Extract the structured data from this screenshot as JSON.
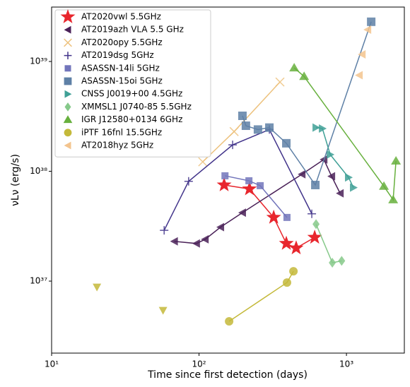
{
  "chart_data": {
    "type": "scatter",
    "log_x": true,
    "log_y": true,
    "xlabel": "Time since first detection (days)",
    "ylabel": "νLν (erg/s)",
    "xlim": [
      10,
      2470
    ],
    "ylim": [
      2.21e+36,
      3.13e+39
    ],
    "xticks": [
      {
        "value": 10,
        "label": "10¹"
      },
      {
        "value": 100,
        "label": "10²"
      },
      {
        "value": 1000,
        "label": "10³"
      }
    ],
    "yticks": [
      {
        "value": 1e+37,
        "label": "10³⁷"
      },
      {
        "value": 1e+38,
        "label": "10³⁸"
      },
      {
        "value": 1e+39,
        "label": "10³⁹"
      }
    ],
    "legend": "upper left",
    "series": [
      {
        "name": "AT2020vwl 5.5GHz",
        "color": "#e8262d",
        "marker": "star",
        "line": true,
        "x": [
          148,
          220,
          321,
          391,
          456,
          609
        ],
        "values": [
          7.5e+37,
          6.9e+37,
          3.8e+37,
          2.2e+37,
          2e+37,
          2.5e+37
        ]
      },
      {
        "name": "AT2019azh VLA 5.5 GHz",
        "color": "#4a2158",
        "marker": "tri-left",
        "line": true,
        "x": [
          68,
          96,
          110,
          140,
          197,
          499,
          703,
          793,
          906
        ],
        "values": [
          2.3e+37,
          2.2e+37,
          2.4e+37,
          3.1e+37,
          4.2e+37,
          9.4e+37,
          1.28e+38,
          9e+37,
          6.3e+37
        ]
      },
      {
        "name": "AT2020opy 5.5GHz",
        "color": "#edc27e",
        "marker": "x",
        "line": true,
        "x": [
          106,
          173,
          354
        ],
        "values": [
          1.22e+38,
          2.3e+38,
          6.5e+38
        ]
      },
      {
        "name": "AT2019dsg 5GHz",
        "color": "#41338a",
        "marker": "plus",
        "line": true,
        "x": [
          58,
          85,
          169,
          300,
          582
        ],
        "values": [
          2.9e+37,
          8.1e+37,
          1.74e+38,
          2.4e+38,
          4.1e+37
        ]
      },
      {
        "name": "ASASSN-14li 5GHz",
        "color": "#7275bb",
        "marker": "square-small",
        "line": true,
        "x": [
          150,
          218,
          260,
          395
        ],
        "values": [
          9.1e+37,
          8.2e+37,
          7.4e+37,
          3.8e+37
        ]
      },
      {
        "name": "ASASSN-15oi 5GHz",
        "color": "#5e80a6",
        "marker": "square",
        "line": true,
        "x": [
          197,
          208,
          251,
          300,
          391,
          615,
          1472
        ],
        "values": [
          3.2e+38,
          2.6e+38,
          2.4e+38,
          2.5e+38,
          1.8e+38,
          7.5e+37,
          2.3e+39
        ]
      },
      {
        "name": "CNSS J0019+00 4.5GHz",
        "color": "#3fa096",
        "marker": "tri-right",
        "line": true,
        "x": [
          622,
          687,
          776,
          1033,
          1116
        ],
        "values": [
          2.5e+38,
          2.45e+38,
          1.42e+38,
          8.8e+37,
          7.1e+37
        ]
      },
      {
        "name": "XMMSL1 J0740-85 5.5GHz",
        "color": "#86c98a",
        "marker": "diamond",
        "line": true,
        "x": [
          622,
          802,
          928
        ],
        "values": [
          3.3e+37,
          1.47e+37,
          1.53e+37
        ]
      },
      {
        "name": "IGR J12580+0134 6GHz",
        "color": "#67b03d",
        "marker": "tri-up",
        "line": true,
        "x": [
          442,
          516,
          1795,
          2074,
          2167
        ],
        "values": [
          8.75e+38,
          7.3e+38,
          7.3e+37,
          5.5e+37,
          1.24e+38
        ]
      },
      {
        "name": "iPTF 16fnl 15.5GHz",
        "color": "#c4b93a",
        "marker": "circle",
        "line": true,
        "x": [
          160,
          395,
          437
        ],
        "values": [
          4.3e+36,
          9.7e+36,
          1.23e+37
        ]
      },
      {
        "name": "AT2018hyz 5GHz",
        "color": "#f3c48e",
        "marker": "tri-left",
        "line": false,
        "x": [
          1393,
          1276,
          1220
        ],
        "values": [
          1.95e+39,
          1.16e+39,
          7.5e+38
        ]
      },
      {
        "color": "#c4b93a",
        "marker": "tri-down",
        "line": false,
        "x": [
          20.3,
          57
        ],
        "values": [
          8.8e+36,
          5.4e+36
        ]
      }
    ]
  }
}
